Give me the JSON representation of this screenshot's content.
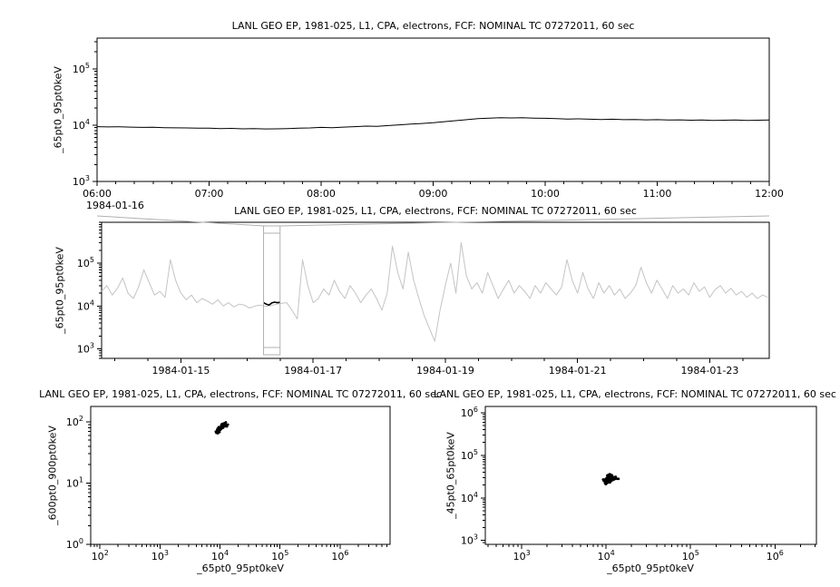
{
  "window": {
    "background": "#ffffff"
  },
  "colors": {
    "axis": "#000000",
    "series_main": "#000000",
    "series_context": "#c4c4c4",
    "selection": "#b0b0b0"
  },
  "chart_data": [
    {
      "id": "main-timeseries",
      "type": "line",
      "title": "LANL GEO EP, 1981-025, L1, CPA, electrons, FCF: NOMINAL TC 07272011, 60 sec",
      "ylabel": "_65pt0_95pt0keV",
      "xlabel": "",
      "x_axis": {
        "scale": "linear",
        "lim": [
          6,
          12
        ],
        "minor_step": 0.1666667,
        "context_label": "1984-01-16",
        "ticks": [
          {
            "v": 6,
            "label": "06:00"
          },
          {
            "v": 7,
            "label": "07:00"
          },
          {
            "v": 8,
            "label": "08:00"
          },
          {
            "v": 9,
            "label": "09:00"
          },
          {
            "v": 10,
            "label": "10:00"
          },
          {
            "v": 11,
            "label": "11:00"
          },
          {
            "v": 12,
            "label": "12:00"
          }
        ]
      },
      "y_axis": {
        "scale": "log",
        "lim": [
          1000,
          350000
        ]
      },
      "series": [
        {
          "name": "electron-flux-65-95keV",
          "color": "#000000",
          "width": 1,
          "x_start": 6.0,
          "x_step": 0.1,
          "y": [
            9400,
            9300,
            9350,
            9200,
            9100,
            9150,
            9000,
            8950,
            8900,
            8850,
            8800,
            8700,
            8750,
            8600,
            8650,
            8550,
            8600,
            8700,
            8800,
            8900,
            9100,
            9000,
            9200,
            9400,
            9600,
            9500,
            9800,
            10100,
            10400,
            10700,
            11000,
            11500,
            12000,
            12500,
            13000,
            13300,
            13500,
            13400,
            13500,
            13300,
            13200,
            13000,
            12800,
            12900,
            12700,
            12600,
            12700,
            12500,
            12600,
            12400,
            12500,
            12300,
            12400,
            12200,
            12300,
            12100,
            12200,
            12300,
            12100,
            12200,
            12300
          ]
        }
      ]
    },
    {
      "id": "context-timeseries",
      "type": "line",
      "title": "LANL GEO EP, 1981-025, L1, CPA, electrons, FCF: NOMINAL TC 07272011, 60 sec",
      "ylabel": "_65pt0_95pt0keV",
      "xlabel": "",
      "x_axis": {
        "scale": "linear",
        "lim": [
          13.8,
          23.9
        ],
        "minor_step": 0.5,
        "ticks": [
          {
            "v": 15,
            "label": "1984-01-15"
          },
          {
            "v": 17,
            "label": "1984-01-17"
          },
          {
            "v": 19,
            "label": "1984-01-19"
          },
          {
            "v": 21,
            "label": "1984-01-21"
          },
          {
            "v": 23,
            "label": "1984-01-23"
          }
        ]
      },
      "y_axis": {
        "scale": "log",
        "lim": [
          600,
          900000
        ]
      },
      "selection": {
        "x0": 16.25,
        "x1": 16.5
      },
      "series": [
        {
          "name": "context-flux-65-95keV",
          "color": "#c4c4c4",
          "width": 1,
          "x_start": 13.8,
          "x_step": 0.08,
          "y": [
            22000,
            30000,
            18000,
            26000,
            45000,
            20000,
            15000,
            28000,
            70000,
            35000,
            18000,
            22000,
            16000,
            120000,
            40000,
            20000,
            14000,
            18000,
            12000,
            15000,
            13000,
            11000,
            14000,
            10000,
            12000,
            9500,
            11000,
            10500,
            9000,
            10000,
            10500,
            9800,
            10200,
            11000,
            11500,
            12000,
            8000,
            5000,
            120000,
            30000,
            12000,
            15000,
            25000,
            18000,
            40000,
            22000,
            15000,
            30000,
            20000,
            12000,
            18000,
            25000,
            15000,
            8000,
            20000,
            250000,
            60000,
            25000,
            180000,
            40000,
            15000,
            6000,
            3000,
            1500,
            8000,
            30000,
            100000,
            20000,
            300000,
            50000,
            25000,
            35000,
            20000,
            60000,
            30000,
            15000,
            25000,
            40000,
            20000,
            30000,
            22000,
            15000,
            30000,
            20000,
            35000,
            25000,
            18000,
            28000,
            120000,
            40000,
            20000,
            60000,
            25000,
            15000,
            35000,
            20000,
            30000,
            18000,
            25000,
            15000,
            20000,
            30000,
            80000,
            35000,
            20000,
            40000,
            25000,
            15000,
            30000,
            20000,
            25000,
            18000,
            35000,
            22000,
            28000,
            16000,
            24000,
            30000,
            20000,
            26000,
            18000,
            22000,
            16000,
            20000,
            15000,
            18000,
            16000
          ]
        },
        {
          "name": "selected-interval-highlight",
          "color": "#000000",
          "width": 1.6,
          "x_start": 16.25,
          "x_step": 0.0416667,
          "y": [
            12000,
            11000,
            10500,
            11800,
            12300,
            12000,
            12200
          ]
        }
      ]
    },
    {
      "id": "scatter-600-900-vs-65-95",
      "type": "scatter",
      "title": "LANL GEO EP, 1981-025, L1, CPA, electrons, FCF: NOMINAL TC 07272011, 60 sec",
      "ylabel": "_600pt0_900pt0keV",
      "xlabel": "_65pt0_95pt0keV",
      "x_axis": {
        "scale": "log",
        "lim": [
          70,
          6800000
        ]
      },
      "y_axis": {
        "scale": "log",
        "lim": [
          1,
          178
        ]
      },
      "series": [
        {
          "name": "scatter-cluster",
          "color": "#000000",
          "x": [
            9500,
            10200,
            11000,
            9800,
            10500,
            12000,
            8900,
            11500,
            10000,
            9200,
            10800,
            11200,
            9600,
            10400,
            12500,
            13000,
            9000,
            9900,
            10700,
            11800,
            8700,
            10100,
            10900,
            11400,
            9400,
            10600,
            12200,
            9700,
            10300,
            11100,
            13500,
            8500,
            9100,
            11700,
            10000,
            12800,
            9300,
            10500,
            11300,
            9800
          ],
          "y": [
            82,
            75,
            90,
            68,
            85,
            95,
            72,
            88,
            78,
            65,
            92,
            80,
            70,
            86,
            98,
            84,
            74,
            79,
            91,
            87,
            66,
            76,
            83,
            94,
            71,
            89,
            96,
            73,
            81,
            85,
            90,
            69,
            77,
            93,
            80,
            88,
            67,
            84,
            92,
            78
          ]
        }
      ]
    },
    {
      "id": "scatter-45-65-vs-65-95",
      "type": "scatter",
      "title": "LANL GEO EP, 1981-025, L1, CPA, electrons, FCF: NOMINAL TC 07272011, 60 sec",
      "ylabel": "_45pt0_65pt0keV",
      "xlabel": "_65pt0_95pt0keV",
      "x_axis": {
        "scale": "log",
        "lim": [
          370,
          3100000
        ]
      },
      "y_axis": {
        "scale": "log",
        "lim": [
          810,
          1400000
        ]
      },
      "series": [
        {
          "name": "scatter-cluster",
          "color": "#000000",
          "x": [
            10500,
            11200,
            9800,
            12000,
            10800,
            11500,
            10200,
            13000,
            9500,
            11800,
            10000,
            12500,
            11000,
            10600,
            9200,
            12200,
            11400,
            10400,
            13500,
            9900,
            10900,
            11600,
            10100,
            12800,
            10700,
            11300,
            9600,
            12100,
            11100,
            10300,
            14000,
            9400,
            11900,
            10500,
            12600,
            9700,
            11700,
            10800,
            12300,
            11000
          ],
          "y": [
            28000,
            32000,
            25000,
            30000,
            35000,
            27000,
            22000,
            31000,
            26000,
            33000,
            24000,
            29000,
            36000,
            23000,
            27000,
            30000,
            25000,
            34000,
            28000,
            21000,
            32000,
            26000,
            29000,
            31000,
            24000,
            35000,
            27000,
            30000,
            23000,
            33000,
            28000,
            25000,
            31000,
            26000,
            29000,
            22000,
            34000,
            27000,
            30000,
            28000
          ]
        }
      ]
    }
  ]
}
